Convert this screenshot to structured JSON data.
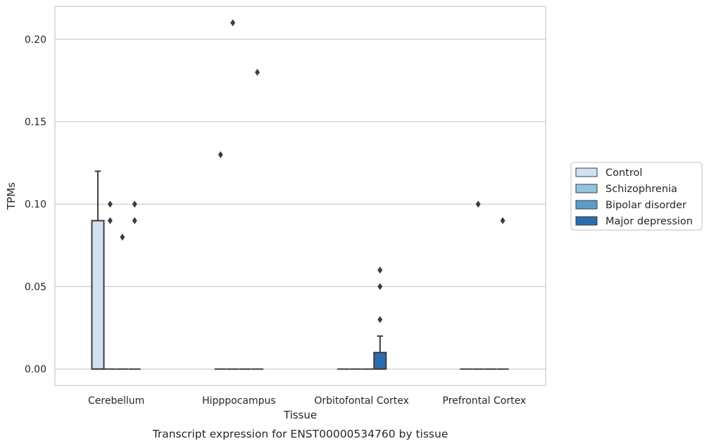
{
  "chart_data": {
    "type": "box",
    "caption": "Transcript expression for ENST00000534760 by tissue",
    "xlabel": "Tissue",
    "ylabel": "TPMs",
    "ylim": [
      -0.01,
      0.22
    ],
    "yticks": [
      "0.00",
      "0.05",
      "0.10",
      "0.15",
      "0.20"
    ],
    "ytick_values": [
      0.0,
      0.05,
      0.1,
      0.15,
      0.2
    ],
    "grid": true,
    "legend_position": "right",
    "categories": [
      "Cerebellum",
      "Hipppocampus",
      "Orbitofontal Cortex",
      "Prefrontal Cortex"
    ],
    "series": [
      {
        "name": "Control",
        "color": "#d0e1f1",
        "boxes": [
          {
            "q1": 0.0,
            "median": 0.0,
            "q3": 0.09,
            "whisker_low": 0.0,
            "whisker_high": 0.12,
            "outliers": []
          },
          {
            "q1": 0.0,
            "median": 0.0,
            "q3": 0.0,
            "whisker_low": 0.0,
            "whisker_high": 0.0,
            "outliers": [
              0.13
            ]
          },
          {
            "q1": 0.0,
            "median": 0.0,
            "q3": 0.0,
            "whisker_low": 0.0,
            "whisker_high": 0.0,
            "outliers": []
          },
          {
            "q1": 0.0,
            "median": 0.0,
            "q3": 0.0,
            "whisker_low": 0.0,
            "whisker_high": 0.0,
            "outliers": []
          }
        ]
      },
      {
        "name": "Schizophrenia",
        "color": "#93c4de",
        "boxes": [
          {
            "q1": 0.0,
            "median": 0.0,
            "q3": 0.0,
            "whisker_low": 0.0,
            "whisker_high": 0.0,
            "outliers": [
              0.1,
              0.09
            ]
          },
          {
            "q1": 0.0,
            "median": 0.0,
            "q3": 0.0,
            "whisker_low": 0.0,
            "whisker_high": 0.0,
            "outliers": [
              0.21
            ]
          },
          {
            "q1": 0.0,
            "median": 0.0,
            "q3": 0.0,
            "whisker_low": 0.0,
            "whisker_high": 0.0,
            "outliers": []
          },
          {
            "q1": 0.0,
            "median": 0.0,
            "q3": 0.0,
            "whisker_low": 0.0,
            "whisker_high": 0.0,
            "outliers": [
              0.1
            ]
          }
        ]
      },
      {
        "name": "Bipolar disorder",
        "color": "#5b9ec9",
        "boxes": [
          {
            "q1": 0.0,
            "median": 0.0,
            "q3": 0.0,
            "whisker_low": 0.0,
            "whisker_high": 0.0,
            "outliers": [
              0.08
            ]
          },
          {
            "q1": 0.0,
            "median": 0.0,
            "q3": 0.0,
            "whisker_low": 0.0,
            "whisker_high": 0.0,
            "outliers": []
          },
          {
            "q1": 0.0,
            "median": 0.0,
            "q3": 0.0,
            "whisker_low": 0.0,
            "whisker_high": 0.0,
            "outliers": []
          },
          {
            "q1": 0.0,
            "median": 0.0,
            "q3": 0.0,
            "whisker_low": 0.0,
            "whisker_high": 0.0,
            "outliers": []
          }
        ]
      },
      {
        "name": "Major depression",
        "color": "#2a6eaf",
        "boxes": [
          {
            "q1": 0.0,
            "median": 0.0,
            "q3": 0.0,
            "whisker_low": 0.0,
            "whisker_high": 0.0,
            "outliers": [
              0.1,
              0.09
            ]
          },
          {
            "q1": 0.0,
            "median": 0.0,
            "q3": 0.0,
            "whisker_low": 0.0,
            "whisker_high": 0.0,
            "outliers": [
              0.18
            ]
          },
          {
            "q1": 0.0,
            "median": 0.0,
            "q3": 0.01,
            "whisker_low": 0.0,
            "whisker_high": 0.02,
            "outliers": [
              0.03,
              0.05,
              0.06
            ]
          },
          {
            "q1": 0.0,
            "median": 0.0,
            "q3": 0.0,
            "whisker_low": 0.0,
            "whisker_high": 0.0,
            "outliers": [
              0.09
            ]
          }
        ]
      }
    ]
  }
}
